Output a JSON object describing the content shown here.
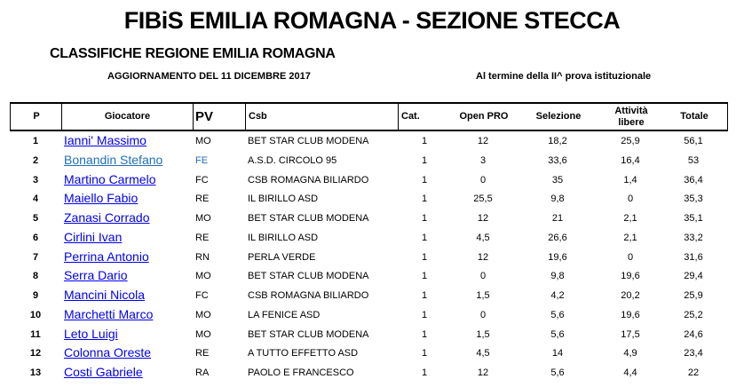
{
  "title": "FIBiS EMILIA ROMAGNA - SEZIONE STECCA",
  "subtitle": "CLASSIFICHE REGIONE EMILIA ROMAGNA",
  "update": "AGGIORNAMENTO DEL  11 DICEMBRE 2017",
  "note": "Al termine della II^ prova istituzionale",
  "colors": {
    "link": "#0000ee",
    "link_visited": "#1f6fb5"
  },
  "headers": {
    "p": "P",
    "player": "Giocatore",
    "pv": "PV",
    "csb": "Csb",
    "cat": "Cat.",
    "open": "Open PRO",
    "sel": "Selezione",
    "att": "Attività libere",
    "tot": "Totale"
  },
  "rows": [
    {
      "p": "1",
      "name": "Ianni' Massimo",
      "pv": "MO",
      "csb": "BET STAR CLUB MODENA",
      "cat": "1",
      "open": "12",
      "sel": "18,2",
      "att": "25,9",
      "tot": "56,1"
    },
    {
      "p": "2",
      "name": "Bonandin Stefano",
      "pv": "FE",
      "csb": "A.S.D. CIRCOLO 95",
      "cat": "1",
      "open": "3",
      "sel": "33,6",
      "att": "16,4",
      "tot": "53"
    },
    {
      "p": "3",
      "name": "Martino Carmelo",
      "pv": "FC",
      "csb": "CSB ROMAGNA BILIARDO",
      "cat": "1",
      "open": "0",
      "sel": "35",
      "att": "1,4",
      "tot": "36,4"
    },
    {
      "p": "4",
      "name": "Maiello Fabio",
      "pv": "RE",
      "csb": "IL BIRILLO ASD",
      "cat": "1",
      "open": "25,5",
      "sel": "9,8",
      "att": "0",
      "tot": "35,3"
    },
    {
      "p": "5",
      "name": "Zanasi Corrado",
      "pv": "MO",
      "csb": "BET STAR CLUB MODENA",
      "cat": "1",
      "open": "12",
      "sel": "21",
      "att": "2,1",
      "tot": "35,1"
    },
    {
      "p": "6",
      "name": "Cirlini Ivan",
      "pv": "RE",
      "csb": "IL BIRILLO ASD",
      "cat": "1",
      "open": "4,5",
      "sel": "26,6",
      "att": "2,1",
      "tot": "33,2"
    },
    {
      "p": "7",
      "name": "Perrina Antonio",
      "pv": "RN",
      "csb": "PERLA VERDE",
      "cat": "1",
      "open": "12",
      "sel": "19,6",
      "att": "0",
      "tot": "31,6"
    },
    {
      "p": "8",
      "name": "Serra Dario",
      "pv": "MO",
      "csb": "BET STAR CLUB MODENA",
      "cat": "1",
      "open": "0",
      "sel": "9,8",
      "att": "19,6",
      "tot": "29,4"
    },
    {
      "p": "9",
      "name": "Mancini Nicola",
      "pv": "FC",
      "csb": "CSB ROMAGNA BILIARDO",
      "cat": "1",
      "open": "1,5",
      "sel": "4,2",
      "att": "20,2",
      "tot": "25,9"
    },
    {
      "p": "10",
      "name": "Marchetti Marco",
      "pv": "MO",
      "csb": "LA FENICE ASD",
      "cat": "1",
      "open": "0",
      "sel": "5,6",
      "att": "19,6",
      "tot": "25,2"
    },
    {
      "p": "11",
      "name": "Leto Luigi",
      "pv": "MO",
      "csb": "BET STAR CLUB MODENA",
      "cat": "1",
      "open": "1,5",
      "sel": "5,6",
      "att": "17,5",
      "tot": "24,6"
    },
    {
      "p": "12",
      "name": "Colonna Oreste",
      "pv": "RE",
      "csb": "A TUTTO EFFETTO ASD",
      "cat": "1",
      "open": "4,5",
      "sel": "14",
      "att": "4,9",
      "tot": "23,4"
    },
    {
      "p": "13",
      "name": "Costi Gabriele",
      "pv": "RA",
      "csb": "PAOLO E FRANCESCO",
      "cat": "1",
      "open": "12",
      "sel": "5,6",
      "att": "4,4",
      "tot": "22"
    }
  ]
}
